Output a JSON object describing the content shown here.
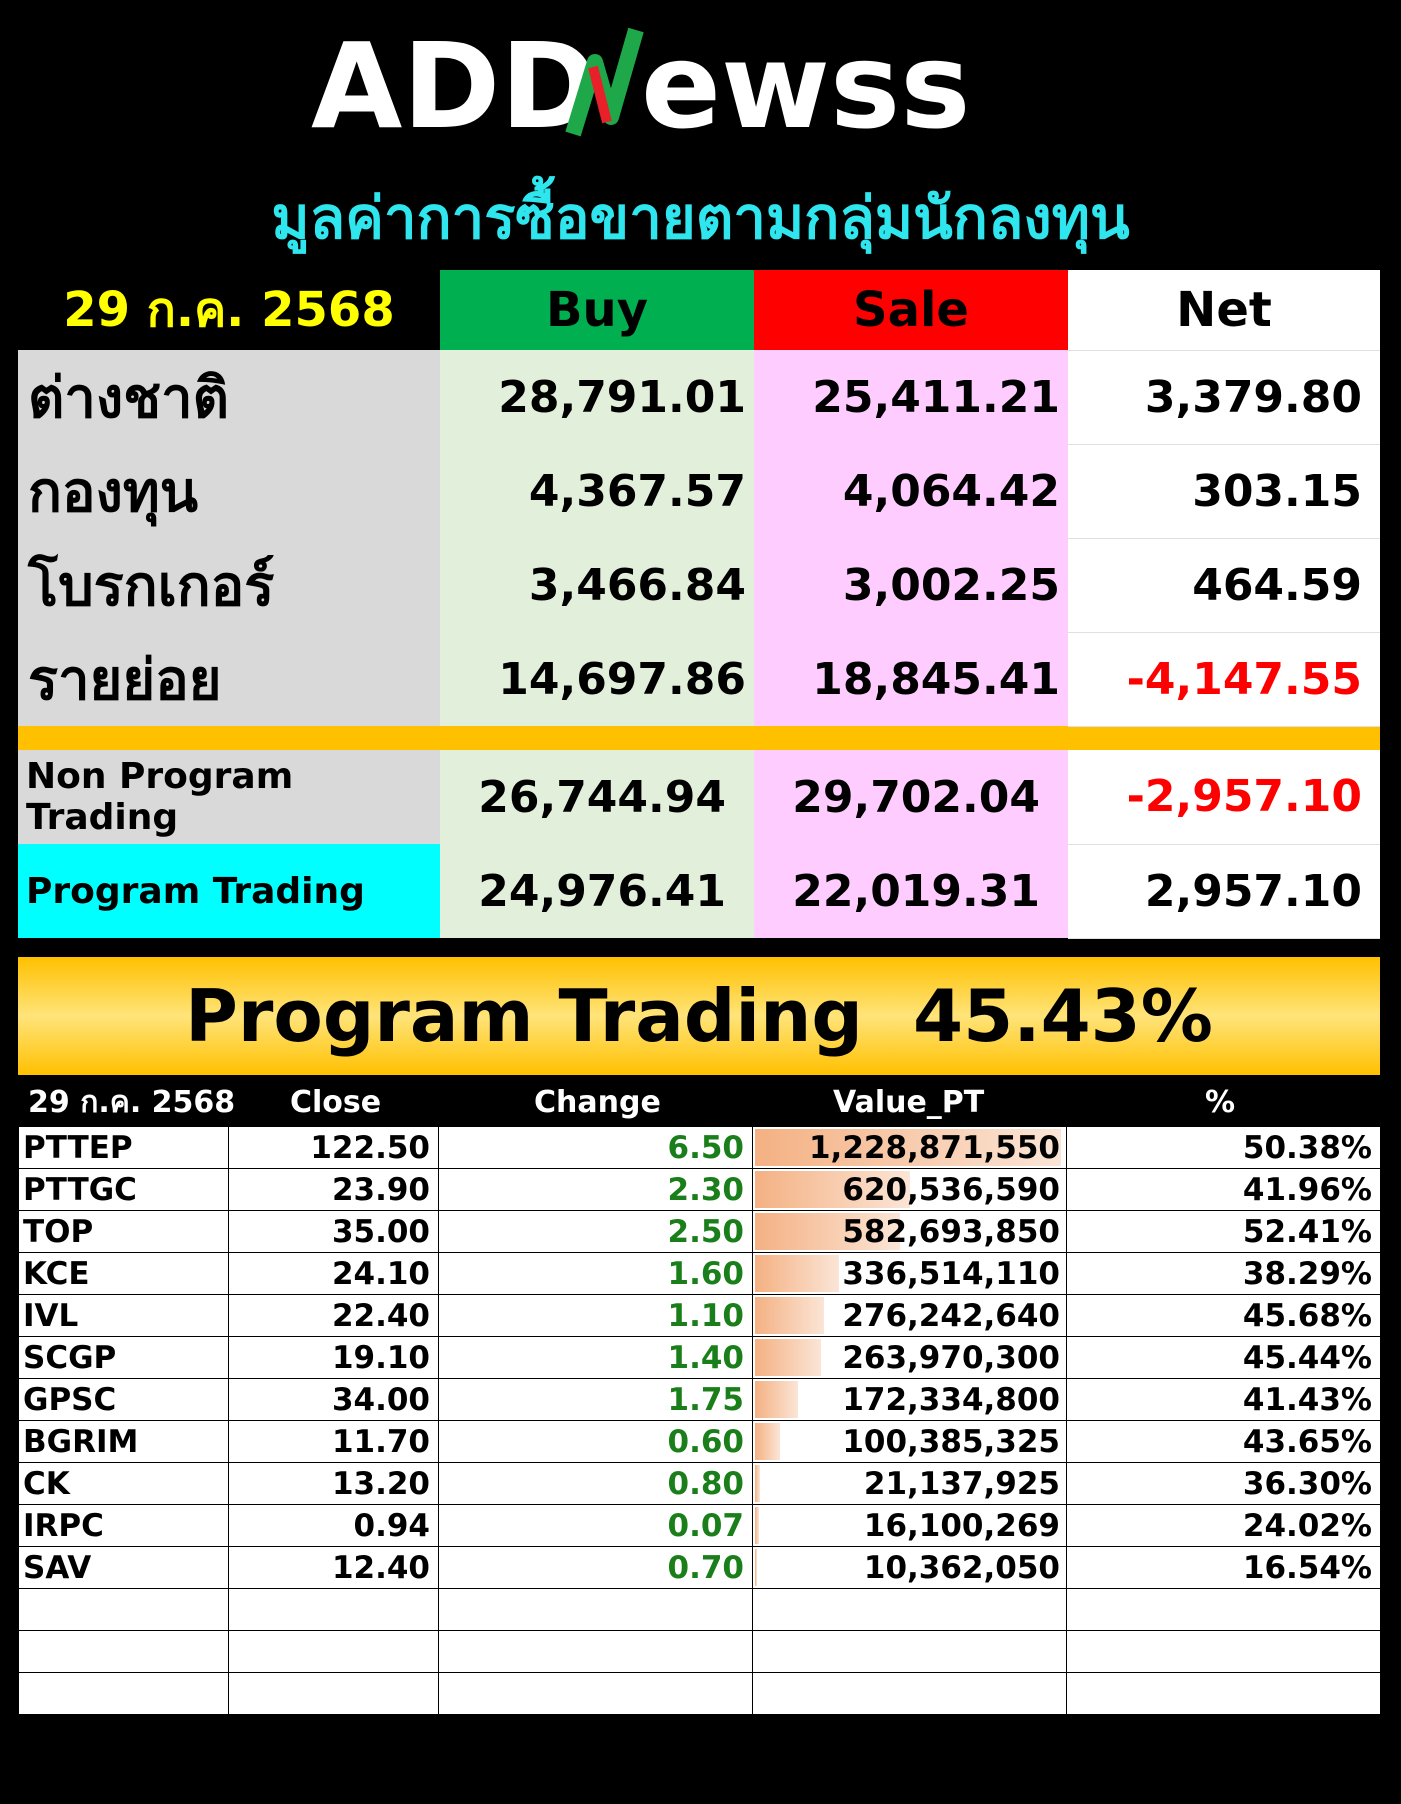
{
  "logo": {
    "text_left": "ADD",
    "text_right": "ewss"
  },
  "title": "มูลค่าการซื้อขายตามกลุ่มนักลงทุน",
  "summary": {
    "date": "29 ก.ค. 2568",
    "headers": {
      "buy": "Buy",
      "sale": "Sale",
      "net": "Net"
    },
    "rows": [
      {
        "label": "ต่างชาติ",
        "buy": "28,791.01",
        "sale": "25,411.21",
        "net": "3,379.80",
        "negative": false
      },
      {
        "label": "กองทุน",
        "buy": "4,367.57",
        "sale": "4,064.42",
        "net": "303.15",
        "negative": false
      },
      {
        "label": "โบรกเกอร์",
        "buy": "3,466.84",
        "sale": "3,002.25",
        "net": "464.59",
        "negative": false
      },
      {
        "label": "รายย่อย",
        "buy": "14,697.86",
        "sale": "18,845.41",
        "net": "-4,147.55",
        "negative": true
      }
    ],
    "program_rows": [
      {
        "label": "Non Program Trading",
        "buy": "26,744.94",
        "sale": "29,702.04",
        "net": "-2,957.10",
        "negative": true
      },
      {
        "label": "Program Trading",
        "buy": "24,976.41",
        "sale": "22,019.31",
        "net": "2,957.10",
        "negative": false
      }
    ]
  },
  "banner": {
    "label": "Program Trading",
    "value": "45.43%"
  },
  "stocks": {
    "headers": {
      "date": "29 ก.ค. 2568",
      "close": "Close",
      "change": "Change",
      "value": "Value_PT",
      "pct": "%"
    },
    "rows": [
      {
        "symbol": "PTTEP",
        "close": "122.50",
        "change": "6.50",
        "value": "1,228,871,550",
        "pct": "50.38%",
        "bar": 1.0
      },
      {
        "symbol": "PTTGC",
        "close": "23.90",
        "change": "2.30",
        "value": "620,536,590",
        "pct": "41.96%",
        "bar": 0.505
      },
      {
        "symbol": "TOP",
        "close": "35.00",
        "change": "2.50",
        "value": "582,693,850",
        "pct": "52.41%",
        "bar": 0.474
      },
      {
        "symbol": "KCE",
        "close": "24.10",
        "change": "1.60",
        "value": "336,514,110",
        "pct": "38.29%",
        "bar": 0.274
      },
      {
        "symbol": "IVL",
        "close": "22.40",
        "change": "1.10",
        "value": "276,242,640",
        "pct": "45.68%",
        "bar": 0.225
      },
      {
        "symbol": "SCGP",
        "close": "19.10",
        "change": "1.40",
        "value": "263,970,300",
        "pct": "45.44%",
        "bar": 0.215
      },
      {
        "symbol": "GPSC",
        "close": "34.00",
        "change": "1.75",
        "value": "172,334,800",
        "pct": "41.43%",
        "bar": 0.14
      },
      {
        "symbol": "BGRIM",
        "close": "11.70",
        "change": "0.60",
        "value": "100,385,325",
        "pct": "43.65%",
        "bar": 0.082
      },
      {
        "symbol": "CK",
        "close": "13.20",
        "change": "0.80",
        "value": "21,137,925",
        "pct": "36.30%",
        "bar": 0.017
      },
      {
        "symbol": "IRPC",
        "close": "0.94",
        "change": "0.07",
        "value": "16,100,269",
        "pct": "24.02%",
        "bar": 0.013
      },
      {
        "symbol": "SAV",
        "close": "12.40",
        "change": "0.70",
        "value": "10,362,050",
        "pct": "16.54%",
        "bar": 0.008
      }
    ],
    "empty_rows": 3
  },
  "colors": {
    "title": "#2fe6ee",
    "date": "#ffff00",
    "buy_header": "#00b050",
    "sale_header": "#ff0000",
    "gold": "#ffc000",
    "negative": "#ff0000",
    "change": "#1a7f1a"
  }
}
